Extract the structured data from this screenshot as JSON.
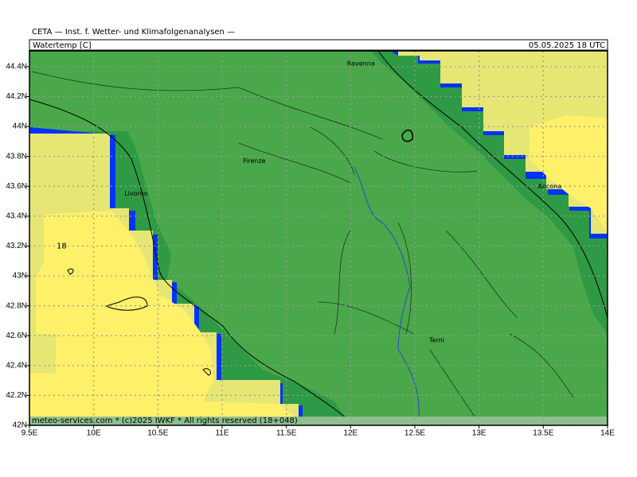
{
  "header": "CETA — Inst. f. Wetter- und Klimafolgenanalysen —",
  "title": "Watertemp [C]",
  "valid_time": "05.05.2025 18 UTC",
  "footer": "meteo-services.com * (c)2025 IWKF * All rights reserved (18+048)",
  "map": {
    "lonlim": [
      9.5,
      14
    ],
    "latlim": [
      42,
      44.506
    ],
    "lon_ticks": [
      {
        "value": 9.5,
        "label": "9.5E"
      },
      {
        "value": 10,
        "label": "10E"
      },
      {
        "value": 10.5,
        "label": "10.5E"
      },
      {
        "value": 11,
        "label": "11E"
      },
      {
        "value": 11.5,
        "label": "11.5E"
      },
      {
        "value": 12,
        "label": "12E"
      },
      {
        "value": 12.5,
        "label": "12.5E"
      },
      {
        "value": 13,
        "label": "13E"
      },
      {
        "value": 13.5,
        "label": "13.5E"
      },
      {
        "value": 14,
        "label": "14E"
      }
    ],
    "lat_ticks": [
      {
        "value": 42,
        "label": "42N"
      },
      {
        "value": 42.2,
        "label": "42.2N"
      },
      {
        "value": 42.4,
        "label": "42.4N"
      },
      {
        "value": 42.6,
        "label": "42.6N"
      },
      {
        "value": 42.8,
        "label": "42.8N"
      },
      {
        "value": 43,
        "label": "43N"
      },
      {
        "value": 43.2,
        "label": "43.2N"
      },
      {
        "value": 43.4,
        "label": "43.4N"
      },
      {
        "value": 43.6,
        "label": "43.6N"
      },
      {
        "value": 43.8,
        "label": "43.8N"
      },
      {
        "value": 44,
        "label": "44N"
      },
      {
        "value": 44.2,
        "label": "44.2N"
      },
      {
        "value": 44.4,
        "label": "44.4N"
      }
    ],
    "places": [
      {
        "name": "Ravenna",
        "lon": 12.08,
        "lat": 44.42
      },
      {
        "name": "Firenze",
        "lon": 11.25,
        "lat": 43.77
      },
      {
        "name": "Livorno",
        "lon": 10.33,
        "lat": 43.55
      },
      {
        "name": "Ancona",
        "lon": 13.55,
        "lat": 43.6
      },
      {
        "name": "Terni",
        "lon": 12.67,
        "lat": 42.57
      }
    ],
    "contour_labels": [
      {
        "text": "18",
        "lon": 9.75,
        "lat": 43.2
      }
    ]
  }
}
